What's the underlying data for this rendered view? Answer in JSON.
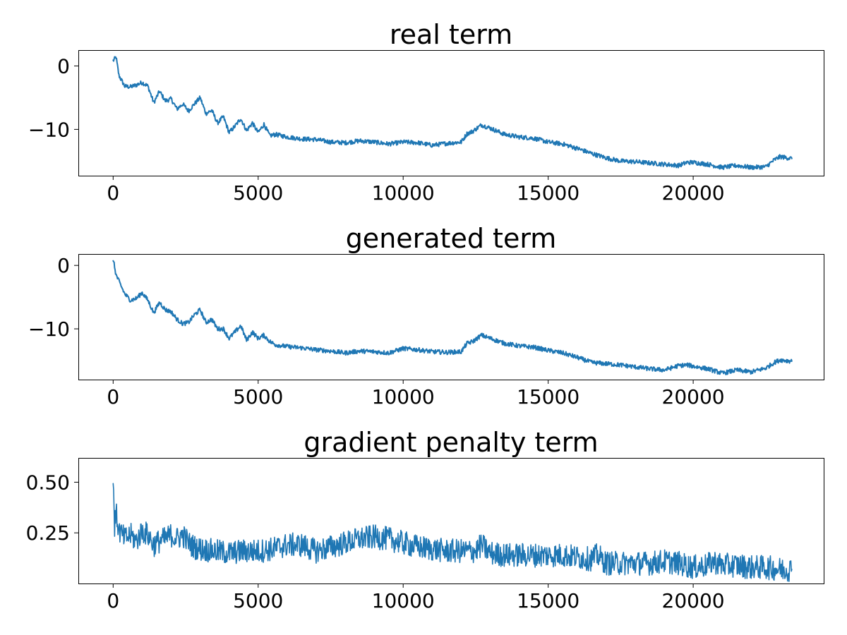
{
  "chart_data": [
    {
      "type": "line",
      "title": "real term",
      "xlabel": "",
      "ylabel": "",
      "xlim": [
        -1200,
        24500
      ],
      "ylim": [
        -17.3,
        2.5
      ],
      "x_ticks": [
        0,
        5000,
        10000,
        15000,
        20000
      ],
      "x_tick_labels": [
        "0",
        "5000",
        "10000",
        "15000",
        "20000"
      ],
      "y_ticks": [
        0,
        -10
      ],
      "y_tick_labels": [
        "0",
        "−10"
      ],
      "grid": false,
      "noise": 0.35,
      "color": "#1f77b4",
      "series": [
        {
          "x": [
            0,
            100,
            200,
            400,
            600,
            800,
            1000,
            1200,
            1400,
            1600,
            1800,
            2000,
            2200,
            2400,
            2600,
            2800,
            3000,
            3200,
            3400,
            3600,
            3800,
            4000,
            4200,
            4400,
            4600,
            4800,
            5000,
            5200,
            5400,
            5600,
            6000,
            6500,
            7000,
            7500,
            8000,
            8500,
            9000,
            9500,
            10000,
            10500,
            11000,
            11500,
            12000,
            12200,
            12400,
            12700,
            13000,
            13500,
            14000,
            14500,
            15000,
            15500,
            16000,
            16500,
            17000,
            17500,
            18000,
            18500,
            19000,
            19500,
            19800,
            20000,
            20500,
            21000,
            21500,
            22000,
            22500,
            22800,
            23000,
            23400
          ],
          "values": [
            0.8,
            1.4,
            -1.5,
            -3.2,
            -3.3,
            -3.0,
            -2.6,
            -3.2,
            -5.8,
            -4.0,
            -5.5,
            -5.2,
            -6.8,
            -6.0,
            -7.1,
            -6.0,
            -5.0,
            -7.5,
            -7.0,
            -9.0,
            -8.0,
            -10.5,
            -9.5,
            -8.3,
            -10.2,
            -9.0,
            -10.5,
            -9.2,
            -11.0,
            -10.8,
            -11.2,
            -11.5,
            -11.6,
            -12.0,
            -12.1,
            -11.8,
            -12.0,
            -12.3,
            -12.0,
            -12.1,
            -12.5,
            -12.2,
            -12.0,
            -10.7,
            -10.3,
            -9.3,
            -9.8,
            -10.8,
            -11.2,
            -11.4,
            -12.0,
            -12.3,
            -13.0,
            -13.8,
            -14.5,
            -15.0,
            -15.1,
            -15.3,
            -15.5,
            -15.7,
            -15.2,
            -15.2,
            -15.5,
            -16.0,
            -15.7,
            -16.0,
            -15.9,
            -14.8,
            -14.3,
            -14.6
          ]
        }
      ]
    },
    {
      "type": "line",
      "title": "generated term",
      "xlabel": "",
      "ylabel": "",
      "xlim": [
        -1200,
        24500
      ],
      "ylim": [
        -18,
        1.8
      ],
      "x_ticks": [
        0,
        5000,
        10000,
        15000,
        20000
      ],
      "x_tick_labels": [
        "0",
        "5000",
        "10000",
        "15000",
        "20000"
      ],
      "y_ticks": [
        0,
        -10
      ],
      "y_tick_labels": [
        "0",
        "−10"
      ],
      "grid": false,
      "noise": 0.35,
      "color": "#1f77b4",
      "series": [
        {
          "x": [
            0,
            100,
            200,
            400,
            600,
            800,
            1000,
            1200,
            1400,
            1600,
            1800,
            2000,
            2200,
            2400,
            2600,
            2800,
            3000,
            3200,
            3400,
            3600,
            3800,
            4000,
            4200,
            4400,
            4600,
            4800,
            5000,
            5200,
            5400,
            5600,
            6000,
            6500,
            7000,
            7500,
            8000,
            8500,
            9000,
            9500,
            10000,
            10500,
            11000,
            11500,
            12000,
            12200,
            12400,
            12700,
            13000,
            13500,
            14000,
            14500,
            15000,
            15500,
            16000,
            16500,
            17000,
            17500,
            18000,
            18500,
            19000,
            19500,
            19800,
            20000,
            20500,
            21000,
            21500,
            22000,
            22500,
            22800,
            23000,
            23400
          ],
          "values": [
            1.0,
            -1.5,
            -2.5,
            -4.5,
            -5.5,
            -5.2,
            -4.3,
            -5.5,
            -7.5,
            -5.8,
            -7.0,
            -7.3,
            -8.5,
            -9.2,
            -9.0,
            -7.8,
            -7.0,
            -9.0,
            -8.5,
            -10.0,
            -10.0,
            -11.5,
            -10.5,
            -9.5,
            -11.8,
            -10.5,
            -11.5,
            -11.0,
            -12.0,
            -12.5,
            -12.8,
            -13.0,
            -13.3,
            -13.5,
            -13.8,
            -13.5,
            -13.6,
            -13.8,
            -13.1,
            -13.3,
            -13.6,
            -13.7,
            -13.6,
            -12.3,
            -12.0,
            -11.0,
            -11.5,
            -12.3,
            -12.7,
            -12.9,
            -13.4,
            -13.8,
            -14.5,
            -15.3,
            -15.5,
            -15.7,
            -16.0,
            -16.3,
            -16.5,
            -15.8,
            -15.7,
            -15.9,
            -16.3,
            -17.0,
            -16.5,
            -16.8,
            -16.2,
            -15.3,
            -14.9,
            -15.1
          ]
        }
      ]
    },
    {
      "type": "line",
      "title": "gradient penalty term",
      "xlabel": "",
      "ylabel": "",
      "xlim": [
        -1200,
        24500
      ],
      "ylim": [
        0.0,
        0.62
      ],
      "x_ticks": [
        0,
        5000,
        10000,
        15000,
        20000
      ],
      "x_tick_labels": [
        "0",
        "5000",
        "10000",
        "15000",
        "20000"
      ],
      "y_ticks": [
        0.5,
        0.25
      ],
      "y_tick_labels": [
        "0.50",
        "0.25"
      ],
      "grid": false,
      "noise": 0.06,
      "color": "#1f77b4",
      "series": [
        {
          "x": [
            0,
            50,
            100,
            200,
            400,
            600,
            800,
            1000,
            1200,
            1400,
            1600,
            1800,
            2000,
            2200,
            2400,
            2600,
            2800,
            3000,
            3500,
            4000,
            4500,
            5000,
            5500,
            6000,
            6500,
            7000,
            7500,
            8000,
            8500,
            9000,
            9500,
            10000,
            10500,
            11000,
            11500,
            12000,
            12500,
            12700,
            13000,
            13500,
            14000,
            14500,
            15000,
            15500,
            16000,
            16500,
            16700,
            17000,
            17500,
            18000,
            18500,
            19000,
            19500,
            20000,
            20500,
            20700,
            21000,
            21500,
            22000,
            22500,
            23000,
            23400
          ],
          "values": [
            0.55,
            0.28,
            0.35,
            0.26,
            0.22,
            0.24,
            0.21,
            0.26,
            0.24,
            0.19,
            0.21,
            0.22,
            0.24,
            0.22,
            0.24,
            0.2,
            0.18,
            0.17,
            0.16,
            0.15,
            0.16,
            0.16,
            0.17,
            0.19,
            0.19,
            0.16,
            0.18,
            0.2,
            0.22,
            0.23,
            0.22,
            0.2,
            0.18,
            0.17,
            0.16,
            0.16,
            0.16,
            0.19,
            0.15,
            0.14,
            0.14,
            0.14,
            0.14,
            0.14,
            0.13,
            0.12,
            0.14,
            0.1,
            0.1,
            0.1,
            0.1,
            0.11,
            0.1,
            0.08,
            0.09,
            0.11,
            0.09,
            0.09,
            0.08,
            0.08,
            0.07,
            0.07
          ]
        }
      ]
    }
  ]
}
